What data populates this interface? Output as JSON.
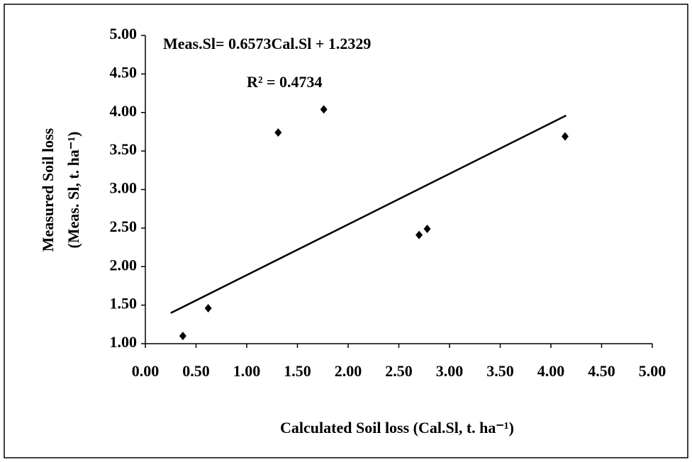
{
  "chart_data": {
    "type": "scatter",
    "equation": "Meas.Sl= 0.6573Cal.Sl + 1.2329",
    "r_squared": "R² = 0.4734",
    "x_label": "Calculated Soil loss (Cal.Sl, t. ha⁻¹)",
    "y_label": [
      "Measured Soil loss",
      "(Meas. Sl, t. ha⁻¹)"
    ],
    "x": [
      0.37,
      0.62,
      1.31,
      1.76,
      2.7,
      2.78,
      4.14
    ],
    "values": [
      1.1,
      1.46,
      3.74,
      4.04,
      2.41,
      2.49,
      3.69
    ],
    "color": "#000000",
    "trendline": {
      "slope": 0.6573,
      "intercept": 1.2329,
      "x_range": [
        0.25,
        4.15
      ]
    },
    "xlim": [
      0,
      5
    ],
    "ylim": [
      1,
      5
    ],
    "xticks": [
      {
        "value": 0,
        "label": "0.00"
      },
      {
        "value": 0.5,
        "label": "0.50"
      },
      {
        "value": 1,
        "label": "1.00"
      },
      {
        "value": 1.5,
        "label": "1.50"
      },
      {
        "value": 2,
        "label": "2.00"
      },
      {
        "value": 2.5,
        "label": "2.50"
      },
      {
        "value": 3,
        "label": "3.00"
      },
      {
        "value": 3.5,
        "label": "3.50"
      },
      {
        "value": 4,
        "label": "4.00"
      },
      {
        "value": 4.5,
        "label": "4.50"
      },
      {
        "value": 5,
        "label": "5.00"
      }
    ],
    "yticks": [
      {
        "value": 1,
        "label": "1.00"
      },
      {
        "value": 1.5,
        "label": "1.50"
      },
      {
        "value": 2,
        "label": "2.00"
      },
      {
        "value": 2.5,
        "label": "2.50"
      },
      {
        "value": 3,
        "label": "3.00"
      },
      {
        "value": 3.5,
        "label": "3.50"
      },
      {
        "value": 4,
        "label": "4.00"
      },
      {
        "value": 4.5,
        "label": "4.50"
      },
      {
        "value": 5,
        "label": "5.00"
      }
    ]
  }
}
